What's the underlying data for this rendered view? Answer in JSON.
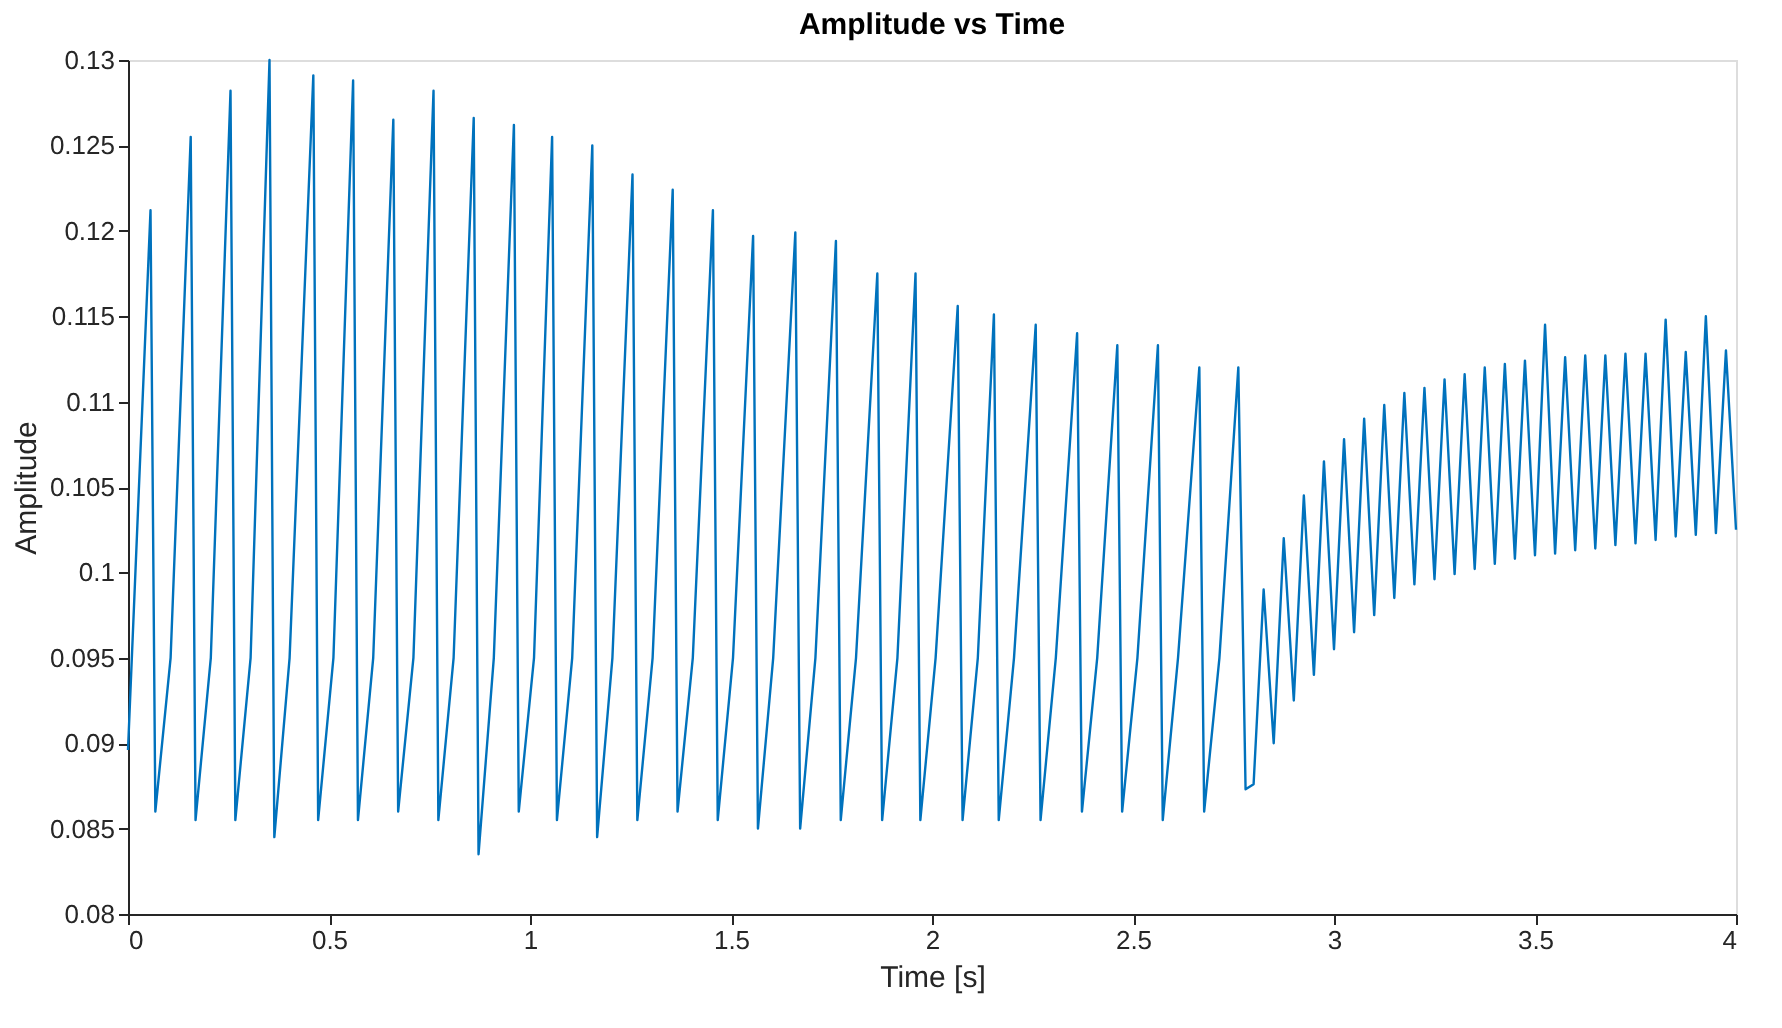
{
  "chart_data": {
    "type": "line",
    "title": "Amplitude vs Time",
    "xlabel": "Time [s]",
    "ylabel": "Amplitude",
    "xlim": [
      0,
      4
    ],
    "xticks": [
      0,
      0.5,
      1,
      1.5,
      2,
      2.5,
      3,
      3.5,
      4
    ],
    "ylim": [
      0.08,
      0.13
    ],
    "yticks": [
      0.08,
      0.085,
      0.09,
      0.095,
      0.1,
      0.105,
      0.11,
      0.115,
      0.12,
      0.125,
      0.13
    ],
    "grid": false,
    "legend": false,
    "marker": "none",
    "line_style": "solid",
    "series": [
      {
        "color": "#0072bd",
        "x": [
          0,
          0.056,
          0.068,
          0.106,
          0.156,
          0.168,
          0.206,
          0.255,
          0.267,
          0.305,
          0.352,
          0.364,
          0.402,
          0.461,
          0.473,
          0.511,
          0.56,
          0.572,
          0.61,
          0.66,
          0.672,
          0.71,
          0.76,
          0.772,
          0.81,
          0.86,
          0.872,
          0.91,
          0.96,
          0.972,
          1.01,
          1.055,
          1.067,
          1.105,
          1.155,
          1.167,
          1.205,
          1.255,
          1.267,
          1.305,
          1.355,
          1.367,
          1.405,
          1.455,
          1.467,
          1.505,
          1.555,
          1.567,
          1.605,
          1.66,
          1.672,
          1.71,
          1.761,
          1.773,
          1.811,
          1.864,
          1.876,
          1.914,
          1.959,
          1.971,
          2.009,
          2.064,
          2.076,
          2.114,
          2.154,
          2.166,
          2.204,
          2.258,
          2.27,
          2.308,
          2.361,
          2.373,
          2.411,
          2.461,
          2.473,
          2.511,
          2.562,
          2.574,
          2.612,
          2.665,
          2.677,
          2.715,
          2.762,
          2.78,
          2.8,
          2.825,
          2.85,
          2.875,
          2.9,
          2.925,
          2.95,
          2.975,
          3.0,
          3.025,
          3.05,
          3.075,
          3.1,
          3.125,
          3.15,
          3.175,
          3.2,
          3.225,
          3.25,
          3.275,
          3.3,
          3.325,
          3.35,
          3.375,
          3.4,
          3.425,
          3.45,
          3.475,
          3.5,
          3.525,
          3.55,
          3.575,
          3.6,
          3.625,
          3.65,
          3.675,
          3.7,
          3.725,
          3.75,
          3.775,
          3.8,
          3.825,
          3.85,
          3.875,
          3.9,
          3.925,
          3.95,
          3.975,
          4.0
        ],
        "values": [
          0.0896,
          0.1212,
          0.086,
          0.095,
          0.1255,
          0.0855,
          0.095,
          0.1282,
          0.0855,
          0.095,
          0.13,
          0.0845,
          0.095,
          0.1291,
          0.0855,
          0.095,
          0.1288,
          0.0855,
          0.095,
          0.1265,
          0.086,
          0.095,
          0.1282,
          0.0855,
          0.095,
          0.1266,
          0.0835,
          0.095,
          0.1262,
          0.086,
          0.095,
          0.1255,
          0.0855,
          0.095,
          0.125,
          0.0845,
          0.095,
          0.1233,
          0.0855,
          0.095,
          0.1224,
          0.086,
          0.095,
          0.1212,
          0.0855,
          0.095,
          0.1197,
          0.085,
          0.095,
          0.1199,
          0.085,
          0.095,
          0.1194,
          0.0855,
          0.095,
          0.1175,
          0.0855,
          0.095,
          0.1175,
          0.0855,
          0.095,
          0.1156,
          0.0855,
          0.095,
          0.1151,
          0.0855,
          0.095,
          0.1145,
          0.0855,
          0.095,
          0.114,
          0.086,
          0.095,
          0.1133,
          0.086,
          0.095,
          0.1133,
          0.0855,
          0.095,
          0.112,
          0.086,
          0.095,
          0.112,
          0.0873,
          0.0876,
          0.099,
          0.09,
          0.102,
          0.0925,
          0.1045,
          0.094,
          0.1065,
          0.0955,
          0.1078,
          0.0965,
          0.109,
          0.0975,
          0.1098,
          0.0985,
          0.1105,
          0.0993,
          0.1108,
          0.0996,
          0.1113,
          0.0999,
          0.1116,
          0.1002,
          0.112,
          0.1005,
          0.1122,
          0.1008,
          0.1124,
          0.101,
          0.1145,
          0.1011,
          0.1126,
          0.1013,
          0.1127,
          0.1014,
          0.1127,
          0.1016,
          0.1128,
          0.1017,
          0.1128,
          0.1019,
          0.1148,
          0.1021,
          0.1129,
          0.1022,
          0.115,
          0.1023,
          0.113,
          0.1025
        ]
      }
    ]
  }
}
